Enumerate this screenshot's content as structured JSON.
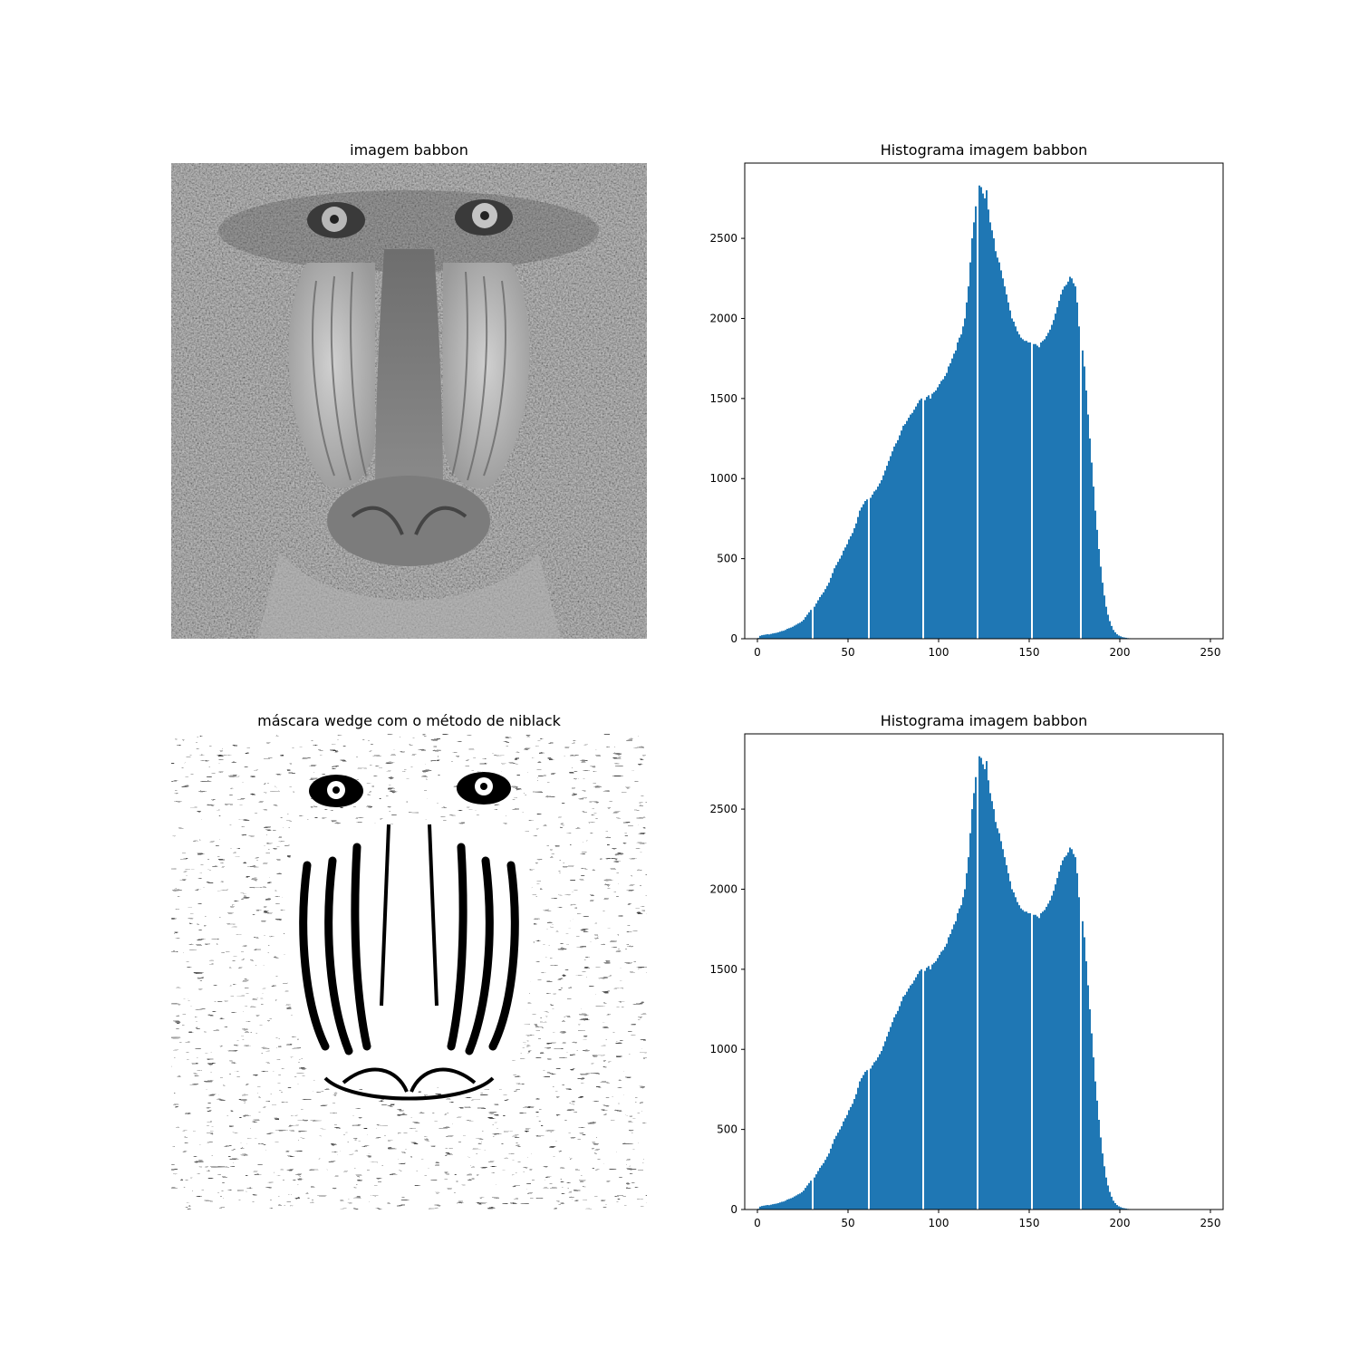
{
  "panels": {
    "top_left_title": "imagem babbon",
    "top_right_title": "Histograma imagem babbon",
    "bottom_left_title": "máscara wedge com o método de niblack",
    "bottom_right_title": "Histograma imagem babbon"
  },
  "chart_data": [
    {
      "type": "bar",
      "title": "Histograma imagem babbon",
      "xlabel": "",
      "ylabel": "",
      "xlim": [
        -7,
        257
      ],
      "ylim": [
        0,
        2970
      ],
      "xticks": [
        0,
        50,
        100,
        150,
        200,
        250
      ],
      "yticks": [
        0,
        500,
        1000,
        1500,
        2000,
        2500
      ],
      "bar_color": "#1f77b4",
      "grid": false,
      "legend": false,
      "bin_width": 1,
      "values": [
        5,
        18,
        22,
        24,
        26,
        28,
        27,
        30,
        33,
        35,
        37,
        40,
        44,
        48,
        50,
        55,
        62,
        66,
        70,
        75,
        82,
        88,
        95,
        100,
        108,
        118,
        135,
        150,
        165,
        180,
        0,
        200,
        220,
        240,
        260,
        275,
        290,
        310,
        330,
        350,
        380,
        410,
        440,
        460,
        480,
        500,
        520,
        550,
        570,
        590,
        620,
        640,
        660,
        690,
        720,
        760,
        800,
        820,
        840,
        860,
        870,
        0,
        880,
        900,
        920,
        930,
        950,
        970,
        990,
        1020,
        1050,
        1080,
        1110,
        1140,
        1170,
        1200,
        1220,
        1240,
        1270,
        1300,
        1330,
        1340,
        1360,
        1380,
        1400,
        1410,
        1430,
        1450,
        1470,
        1490,
        1500,
        0,
        1490,
        1510,
        1520,
        1500,
        1530,
        1540,
        1550,
        1570,
        1590,
        1610,
        1620,
        1640,
        1660,
        1700,
        1720,
        1750,
        1780,
        1800,
        1850,
        1880,
        1900,
        1950,
        2000,
        2100,
        2200,
        2350,
        2500,
        2600,
        2700,
        0,
        2830,
        2820,
        2780,
        2750,
        2800,
        2680,
        2600,
        2550,
        2500,
        2420,
        2380,
        2350,
        2300,
        2250,
        2200,
        2150,
        2100,
        2050,
        2000,
        1980,
        1950,
        1920,
        1900,
        1880,
        1870,
        1860,
        1860,
        1850,
        1850,
        0,
        1840,
        1840,
        1830,
        1820,
        1850,
        1860,
        1870,
        1890,
        1910,
        1930,
        1960,
        1990,
        2030,
        2070,
        2110,
        2150,
        2180,
        2200,
        2210,
        2230,
        2260,
        2250,
        2220,
        2200,
        2100,
        1950,
        0,
        1800,
        1700,
        1550,
        1400,
        1250,
        1100,
        950,
        800,
        680,
        560,
        450,
        350,
        270,
        200,
        150,
        110,
        80,
        55,
        40,
        28,
        20,
        15,
        10,
        8,
        6,
        4,
        3,
        2,
        2,
        1,
        1,
        1,
        1,
        0,
        0,
        0,
        0,
        0,
        0,
        0,
        0,
        0,
        0,
        0,
        0,
        0,
        0,
        0,
        0,
        0,
        0,
        0,
        0,
        0,
        0,
        0,
        0,
        0,
        0,
        0,
        0,
        0,
        0,
        0,
        0,
        0,
        0,
        0
      ]
    },
    {
      "type": "bar",
      "title": "Histograma imagem babbon",
      "xlabel": "",
      "ylabel": "",
      "xlim": [
        -7,
        257
      ],
      "ylim": [
        0,
        2970
      ],
      "xticks": [
        0,
        50,
        100,
        150,
        200,
        250
      ],
      "yticks": [
        0,
        500,
        1000,
        1500,
        2000,
        2500
      ],
      "bar_color": "#1f77b4",
      "grid": false,
      "legend": false,
      "bin_width": 1,
      "values": [
        5,
        18,
        22,
        24,
        26,
        28,
        27,
        30,
        33,
        35,
        37,
        40,
        44,
        48,
        50,
        55,
        62,
        66,
        70,
        75,
        82,
        88,
        95,
        100,
        108,
        118,
        135,
        150,
        165,
        180,
        0,
        200,
        220,
        240,
        260,
        275,
        290,
        310,
        330,
        350,
        380,
        410,
        440,
        460,
        480,
        500,
        520,
        550,
        570,
        590,
        620,
        640,
        660,
        690,
        720,
        760,
        800,
        820,
        840,
        860,
        870,
        0,
        880,
        900,
        920,
        930,
        950,
        970,
        990,
        1020,
        1050,
        1080,
        1110,
        1140,
        1170,
        1200,
        1220,
        1240,
        1270,
        1300,
        1330,
        1340,
        1360,
        1380,
        1400,
        1410,
        1430,
        1450,
        1470,
        1490,
        1500,
        0,
        1490,
        1510,
        1520,
        1500,
        1530,
        1540,
        1550,
        1570,
        1590,
        1610,
        1620,
        1640,
        1660,
        1700,
        1720,
        1750,
        1780,
        1800,
        1850,
        1880,
        1900,
        1950,
        2000,
        2100,
        2200,
        2350,
        2500,
        2600,
        2700,
        0,
        2830,
        2820,
        2780,
        2750,
        2800,
        2680,
        2600,
        2550,
        2500,
        2420,
        2380,
        2350,
        2300,
        2250,
        2200,
        2150,
        2100,
        2050,
        2000,
        1980,
        1950,
        1920,
        1900,
        1880,
        1870,
        1860,
        1860,
        1850,
        1850,
        0,
        1840,
        1840,
        1830,
        1820,
        1850,
        1860,
        1870,
        1890,
        1910,
        1930,
        1960,
        1990,
        2030,
        2070,
        2110,
        2150,
        2180,
        2200,
        2210,
        2230,
        2260,
        2250,
        2220,
        2200,
        2100,
        1950,
        0,
        1800,
        1700,
        1550,
        1400,
        1250,
        1100,
        950,
        800,
        680,
        560,
        450,
        350,
        270,
        200,
        150,
        110,
        80,
        55,
        40,
        28,
        20,
        15,
        10,
        8,
        6,
        4,
        3,
        2,
        2,
        1,
        1,
        1,
        1,
        0,
        0,
        0,
        0,
        0,
        0,
        0,
        0,
        0,
        0,
        0,
        0,
        0,
        0,
        0,
        0,
        0,
        0,
        0,
        0,
        0,
        0,
        0,
        0,
        0,
        0,
        0,
        0,
        0,
        0,
        0,
        0,
        0,
        0,
        0
      ]
    }
  ]
}
